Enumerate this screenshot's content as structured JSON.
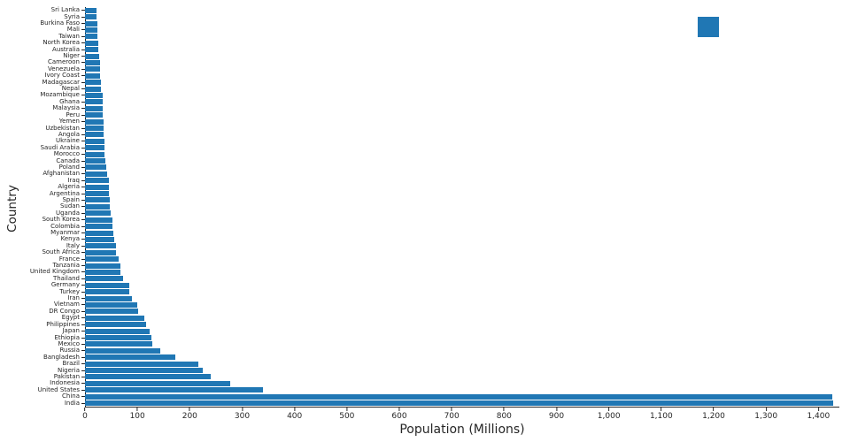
{
  "chart_data": {
    "type": "bar",
    "orientation": "horizontal",
    "title": "",
    "xlabel": "Population (Millions)",
    "ylabel": "Country",
    "xlim": [
      0,
      1440
    ],
    "grid": false,
    "legend_position": "top-right",
    "bar_color": "#2077b4",
    "xticks": [
      {
        "value": 0,
        "label": "0"
      },
      {
        "value": 100,
        "label": "100"
      },
      {
        "value": 200,
        "label": "200"
      },
      {
        "value": 300,
        "label": "300"
      },
      {
        "value": 400,
        "label": "400"
      },
      {
        "value": 500,
        "label": "500"
      },
      {
        "value": 600,
        "label": "600"
      },
      {
        "value": 700,
        "label": "700"
      },
      {
        "value": 800,
        "label": "800"
      },
      {
        "value": 900,
        "label": "900"
      },
      {
        "value": 1000,
        "label": "1,000"
      },
      {
        "value": 1100,
        "label": "1,100"
      },
      {
        "value": 1200,
        "label": "1,200"
      },
      {
        "value": 1300,
        "label": "1,300"
      },
      {
        "value": 1400,
        "label": "1,400"
      }
    ],
    "categories": [
      "Sri Lanka",
      "Syria",
      "Burkina Faso",
      "Mali",
      "Taiwan",
      "North Korea",
      "Australia",
      "Niger",
      "Cameroon",
      "Venezuela",
      "Ivory Coast",
      "Madagascar",
      "Nepal",
      "Mozambique",
      "Ghana",
      "Malaysia",
      "Peru",
      "Yemen",
      "Uzbekistan",
      "Angola",
      "Ukraine",
      "Saudi Arabia",
      "Morocco",
      "Canada",
      "Poland",
      "Afghanistan",
      "Iraq",
      "Algeria",
      "Argentina",
      "Spain",
      "Sudan",
      "Uganda",
      "South Korea",
      "Colombia",
      "Myanmar",
      "Kenya",
      "Italy",
      "South Africa",
      "France",
      "Tanzania",
      "United Kingdom",
      "Thailand",
      "Germany",
      "Turkey",
      "Iran",
      "Vietnam",
      "DR Congo",
      "Egypt",
      "Philippines",
      "Japan",
      "Ethiopia",
      "Mexico",
      "Russia",
      "Bangladesh",
      "Brazil",
      "Nigeria",
      "Pakistan",
      "Indonesia",
      "United States",
      "China",
      "India"
    ],
    "values": [
      22,
      22,
      23,
      23,
      24,
      26,
      26,
      27,
      28,
      28,
      29,
      30,
      31,
      33,
      34,
      34,
      34,
      35,
      35,
      36,
      37,
      37,
      38,
      39,
      41,
      42,
      45,
      46,
      46,
      48,
      48,
      49,
      52,
      52,
      54,
      55,
      59,
      60,
      65,
      67,
      68,
      72,
      84,
      85,
      89,
      99,
      102,
      113,
      117,
      123,
      127,
      128,
      144,
      173,
      216,
      224,
      240,
      278,
      340,
      1426,
      1429
    ]
  },
  "legend": {
    "items": [
      {
        "label": "",
        "color": "#2077b4"
      }
    ]
  }
}
